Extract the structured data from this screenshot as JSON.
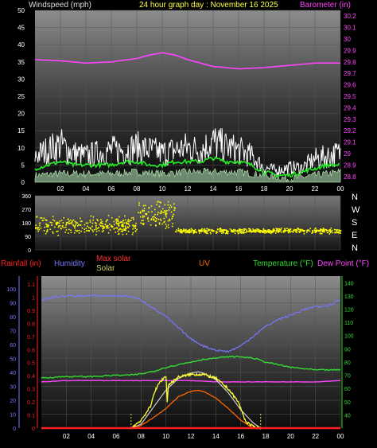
{
  "header": {
    "left_label": "Windspeed (mph)",
    "center_label": "24 hour graph day : November 16 2025",
    "right_label": "Barometer (in)"
  },
  "colors": {
    "background": "#000000",
    "plot_bg_top": "#8c8c8c",
    "plot_bg_bottom": "#101010",
    "wind_axis": "#ffffff",
    "barometer": "#ff44ff",
    "wind_gust": "#ffffff",
    "wind_avg": "#22ee22",
    "wind_low": "#bbeebb",
    "direction": "#ffff00",
    "rain": "#ff2222",
    "humidity": "#7777ff",
    "max_solar": "#ff3333",
    "solar": "#cccc44",
    "uv": "#ff6600",
    "temperature": "#33dd33",
    "dew_point": "#ff44ff"
  },
  "chart_data": [
    {
      "name": "wind-barometer",
      "type": "line",
      "x_ticks": [
        "02",
        "04",
        "06",
        "08",
        "10",
        "12",
        "14",
        "16",
        "18",
        "20",
        "22",
        "00"
      ],
      "y_left_ticks": [
        "0",
        "5",
        "10",
        "15",
        "20",
        "25",
        "30",
        "35",
        "40",
        "45",
        "50"
      ],
      "y_left_range": [
        0,
        50
      ],
      "y_right_ticks": [
        "28.8",
        "28.9",
        "29",
        "29.1",
        "29.2",
        "29.3",
        "29.4",
        "29.5",
        "29.6",
        "29.7",
        "29.8",
        "29.9",
        "30",
        "30.1",
        "30.2"
      ],
      "y_right_range": [
        28.75,
        30.25
      ],
      "ylabel_left": "Windspeed (mph)",
      "ylabel_right": "Barometer (in)",
      "series": [
        {
          "id": "barometer",
          "hours": [
            0,
            2,
            4,
            6,
            8,
            9,
            10,
            11,
            12,
            14,
            16,
            18,
            20,
            22,
            24
          ],
          "values": [
            29.82,
            29.81,
            29.79,
            29.8,
            29.83,
            29.86,
            29.88,
            29.86,
            29.82,
            29.76,
            29.74,
            29.75,
            29.77,
            29.79,
            29.79
          ]
        },
        {
          "id": "gust",
          "hours": [
            0,
            1,
            2,
            3,
            4,
            5,
            6,
            7,
            8,
            9,
            10,
            11,
            12,
            13,
            14,
            15,
            16,
            17,
            18,
            19,
            20,
            21,
            22,
            23,
            24
          ],
          "values": [
            9,
            11,
            13,
            10,
            9,
            10,
            11,
            11,
            12,
            11,
            10,
            11,
            12,
            11,
            14,
            12,
            11,
            9,
            5,
            4,
            5,
            5,
            8,
            9,
            10
          ]
        },
        {
          "id": "average",
          "hours": [
            0,
            1,
            2,
            3,
            4,
            5,
            6,
            7,
            8,
            9,
            10,
            11,
            12,
            13,
            14,
            15,
            16,
            17,
            18,
            19,
            20,
            21,
            22,
            23,
            24
          ],
          "values": [
            4,
            5,
            6,
            5,
            5,
            5,
            5,
            6,
            6,
            5,
            5,
            6,
            6,
            6,
            7,
            6,
            6,
            5,
            3,
            2,
            2,
            3,
            4,
            5,
            5
          ]
        },
        {
          "id": "low",
          "hours": [
            0,
            2,
            4,
            6,
            8,
            10,
            12,
            14,
            16,
            18,
            20,
            22,
            24
          ],
          "values": [
            2,
            2.5,
            2.5,
            2.5,
            3,
            2.5,
            3,
            3,
            3,
            2,
            1,
            2,
            3
          ]
        }
      ]
    },
    {
      "name": "wind-direction",
      "type": "scatter",
      "x_ticks": [
        "02",
        "04",
        "06",
        "08",
        "10",
        "12",
        "14",
        "16",
        "18",
        "20",
        "22",
        "00"
      ],
      "y_ticks": [
        "360",
        "270",
        "180",
        "90",
        "0"
      ],
      "y_range": [
        0,
        360
      ],
      "compass": [
        "N",
        "W",
        "S",
        "E",
        "N"
      ],
      "bands": [
        {
          "from_hour": 0,
          "to_hour": 8,
          "center": 165,
          "spread": 70
        },
        {
          "from_hour": 8,
          "to_hour": 11,
          "center": 240,
          "spread": 100
        },
        {
          "from_hour": 11,
          "to_hour": 24,
          "center": 130,
          "spread": 20
        }
      ]
    },
    {
      "name": "rain-humidity-solar-uv-temperature",
      "type": "line",
      "x_ticks": [
        "02",
        "04",
        "06",
        "08",
        "10",
        "12",
        "14",
        "16",
        "18",
        "20",
        "22",
        "00"
      ],
      "legend": [
        "Rainfall (in)",
        "Humidity",
        "Max solar",
        "Solar",
        "UV",
        "Temperature (°F)",
        "Dew Point (°F)"
      ],
      "y_rain_ticks": [
        "0",
        "0.1",
        "0.2",
        "0.3",
        "0.4",
        "0.5",
        "0.6",
        "0.7",
        "0.8",
        "0.9",
        "1",
        "1.1"
      ],
      "y_rain_range": [
        0,
        1.1
      ],
      "y_humidity_ticks": [
        "0",
        "10",
        "20",
        "30",
        "40",
        "50",
        "60",
        "70",
        "80",
        "90",
        "100"
      ],
      "y_humidity_range": [
        0,
        100
      ],
      "y_temp_ticks": [
        "40",
        "50",
        "60",
        "70",
        "80",
        "90",
        "100",
        "110",
        "120",
        "130",
        "140"
      ],
      "y_temp_range": [
        30,
        145
      ],
      "series": [
        {
          "id": "humidity",
          "hours": [
            0,
            1,
            2,
            3,
            4,
            5,
            6,
            7,
            8,
            9,
            10,
            11,
            12,
            13,
            14,
            15,
            16,
            17,
            18,
            19,
            20,
            21,
            22,
            23,
            24
          ],
          "values": [
            92,
            94,
            95,
            95,
            95,
            95,
            95,
            95,
            92,
            86,
            80,
            72,
            64,
            59,
            56,
            55,
            59,
            66,
            73,
            78,
            81,
            85,
            87,
            88,
            92
          ]
        },
        {
          "id": "temperature",
          "hours": [
            0,
            2,
            4,
            6,
            7,
            8,
            9,
            10,
            11,
            12,
            13,
            14,
            15,
            16,
            17,
            18,
            19,
            20,
            22,
            24
          ],
          "values": [
            68,
            69,
            69,
            70,
            70,
            71,
            73,
            76,
            78,
            80,
            82,
            83,
            84,
            84,
            83,
            80,
            78,
            76,
            74,
            74
          ]
        },
        {
          "id": "dew_point",
          "hours": [
            0,
            2,
            4,
            6,
            8,
            10,
            12,
            14,
            16,
            18,
            20,
            22,
            24
          ],
          "values": [
            65,
            66,
            66,
            66,
            66,
            66,
            66,
            65,
            65,
            65,
            65,
            65,
            66
          ]
        },
        {
          "id": "max_solar",
          "hours": [
            7.2,
            8,
            9,
            10,
            11,
            12,
            12.6,
            13,
            14,
            15,
            16,
            17,
            17.6
          ],
          "values": [
            0,
            0.03,
            0.16,
            0.29,
            0.38,
            0.42,
            0.43,
            0.42,
            0.37,
            0.27,
            0.14,
            0.04,
            0
          ]
        },
        {
          "id": "solar",
          "hours": [
            7.2,
            8,
            8.8,
            9,
            9.5,
            9.8,
            10,
            10.1,
            10.2,
            11,
            12,
            13,
            14,
            15,
            15.8,
            16,
            16.4,
            17,
            17.6
          ],
          "values": [
            0,
            0.06,
            0.17,
            0.26,
            0.35,
            0.38,
            0.4,
            0.2,
            0.33,
            0.39,
            0.41,
            0.41,
            0.38,
            0.3,
            0.2,
            0.15,
            0.05,
            0.01,
            0
          ]
        },
        {
          "id": "uv",
          "hours": [
            7.5,
            8,
            9,
            10,
            11,
            12,
            12.5,
            13,
            14,
            15,
            16,
            17
          ],
          "values": [
            0,
            0.02,
            0.08,
            0.15,
            0.24,
            0.28,
            0.29,
            0.28,
            0.23,
            0.15,
            0.06,
            0
          ]
        },
        {
          "id": "rain",
          "hours": [
            0,
            24
          ],
          "values": [
            0,
            0
          ]
        }
      ]
    }
  ]
}
